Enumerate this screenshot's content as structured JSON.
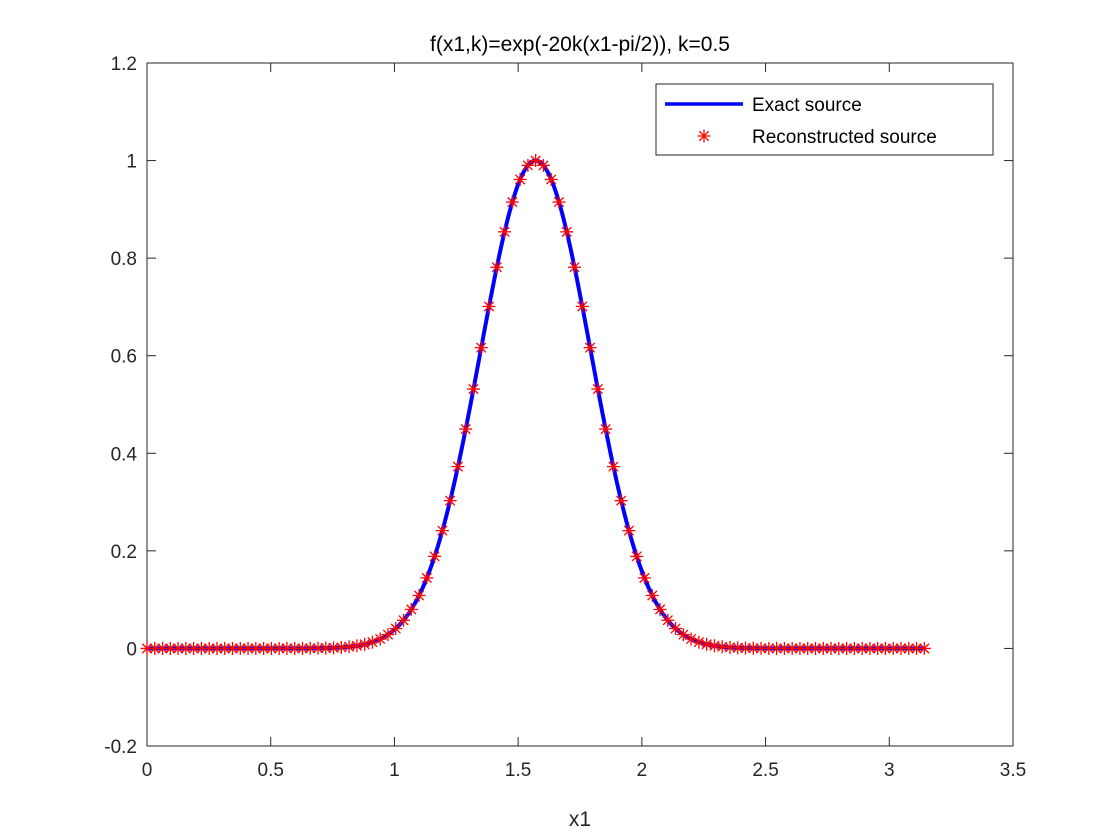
{
  "chart_data": {
    "type": "line",
    "title": "f(x1,k)=exp(-20k(x1-pi/2)),   k=0.5",
    "xlabel": "x1",
    "ylabel": "",
    "xlim": [
      0,
      3.5
    ],
    "ylim": [
      -0.2,
      1.2
    ],
    "xticks": [
      "0",
      "0.5",
      "1",
      "1.5",
      "2",
      "2.5",
      "3",
      "3.5"
    ],
    "yticks": [
      "-0.2",
      "0",
      "0.2",
      "0.4",
      "0.6",
      "0.8",
      "1",
      "1.2"
    ],
    "grid": false,
    "legend_position": "top-right",
    "series": [
      {
        "name": "Exact source",
        "style": "solid line",
        "color": "#0000ff",
        "function": "exp(-10*(x1-pi/2)^2)",
        "x_range": [
          0,
          3.1416
        ]
      },
      {
        "name": "Reconstructed source",
        "style": "asterisk markers",
        "color": "#ff0000",
        "function": "exp(-10*(x1-pi/2)^2)",
        "x_range": [
          0,
          3.1416
        ],
        "point_count": 101
      }
    ]
  }
}
